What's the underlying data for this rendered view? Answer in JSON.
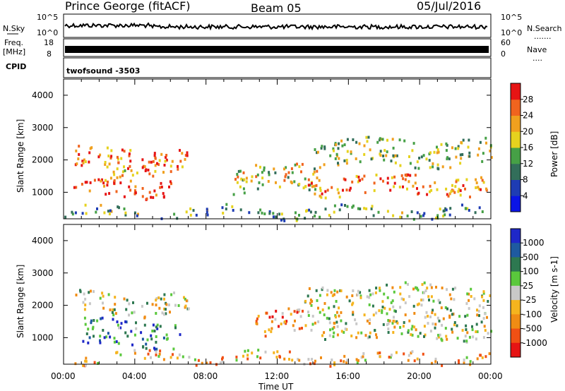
{
  "header": {
    "site": "Prince George (fitACF)",
    "beam": "Beam 05",
    "date": "05/Jul/2016"
  },
  "top_panels": {
    "nsky": {
      "label": "N.Sky",
      "tick_hi": "10^5",
      "tick_lo": "10^0",
      "right_label": "N.Search"
    },
    "freq": {
      "label_line1": "Freq.",
      "label_line2": "[MHz]",
      "tick_hi": "18",
      "tick_lo": "8",
      "right_hi": "60",
      "right_lo": "0",
      "right_label": "Nave"
    },
    "cpid": {
      "label": "CPID",
      "program": "twofsound -3503"
    }
  },
  "colors": {
    "power": [
      "#0a14e6",
      "#1e3cb4",
      "#326e5a",
      "#46a046",
      "#e6d21e",
      "#f0a01e",
      "#f0641e",
      "#e61414"
    ],
    "velocity": [
      "#1e28c8",
      "#1e5aa0",
      "#2d7850",
      "#5ac83c",
      "#c8c8c8",
      "#f5b41e",
      "#f08c14",
      "#f05014",
      "#e61414"
    ]
  },
  "chart_data": [
    {
      "type": "heatmap",
      "title": "Power [dB]",
      "xlabel": "Time UT",
      "ylabel": "Slant Range [km]",
      "x_ticks": [
        "00:00",
        "04:00",
        "08:00",
        "12:00",
        "16:00",
        "20:00",
        "00:00"
      ],
      "x_range_hours": [
        0,
        24
      ],
      "y_ticks": [
        1000,
        2000,
        3000,
        4000
      ],
      "y_range_km": [
        180,
        4500
      ],
      "colorbar_label": "Power [dB]",
      "colorbar_ticks": [
        4,
        8,
        12,
        16,
        20,
        24,
        28
      ],
      "colorbar_range": [
        0,
        32
      ],
      "features": [
        {
          "t": [
            0.6,
            7.0
          ],
          "r": [
            1700,
            2350
          ],
          "level": 0.8
        },
        {
          "t": [
            0.5,
            6.0
          ],
          "r": [
            850,
            1350
          ],
          "level": 0.9
        },
        {
          "t": [
            2.0,
            5.5
          ],
          "r": [
            1400,
            1900
          ],
          "level": 0.7
        },
        {
          "t": [
            9.5,
            14.5
          ],
          "r": [
            1000,
            1800
          ],
          "level": 0.6
        },
        {
          "t": [
            13.5,
            24.0
          ],
          "r": [
            900,
            1500
          ],
          "level": 0.75
        },
        {
          "t": [
            14.0,
            24.0
          ],
          "r": [
            1800,
            2600
          ],
          "level": 0.5
        },
        {
          "t": [
            0.0,
            24.0
          ],
          "r": [
            200,
            500
          ],
          "level": 0.4
        }
      ]
    },
    {
      "type": "heatmap",
      "title": "Velocity [m s-1]",
      "xlabel": "Time UT",
      "ylabel": "Slant Range [km]",
      "x_ticks": [
        "00:00",
        "04:00",
        "08:00",
        "12:00",
        "16:00",
        "20:00",
        "00:00"
      ],
      "x_range_hours": [
        0,
        24
      ],
      "y_ticks": [
        1000,
        2000,
        3000,
        4000
      ],
      "y_range_km": [
        180,
        4500
      ],
      "colorbar_label": "Velocity [m s-1]",
      "colorbar_ticks": [
        1000,
        500,
        100,
        25,
        -25,
        -100,
        -500,
        -1000
      ],
      "colorbar_range": [
        -1200,
        1200
      ],
      "features": [
        {
          "t": [
            1.0,
            6.5
          ],
          "r": [
            700,
            1500
          ],
          "level": 0.2
        },
        {
          "t": [
            0.6,
            7.0
          ],
          "r": [
            1700,
            2350
          ],
          "level": 0.5
        },
        {
          "t": [
            10.5,
            13.5
          ],
          "r": [
            1000,
            1800
          ],
          "level": 0.75
        },
        {
          "t": [
            13.5,
            24.0
          ],
          "r": [
            900,
            2600
          ],
          "level": 0.5
        },
        {
          "t": [
            0.0,
            24.0
          ],
          "r": [
            200,
            500
          ],
          "level": 0.65
        }
      ]
    }
  ]
}
